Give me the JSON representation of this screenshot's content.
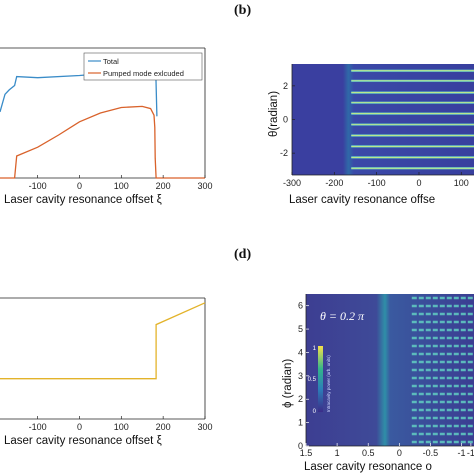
{
  "panels": {
    "a": {
      "xlabel": "Laser cavity resonance offset ξ",
      "xticks": [
        "-100",
        "0",
        "100",
        "200",
        "300"
      ],
      "legend": [
        "Total",
        "Pumped mode exlcuded"
      ]
    },
    "b": {
      "label": "(b)",
      "xlabel": "Laser cavity resonance offse",
      "ylabel": "θ(radian)",
      "xticks": [
        "-300",
        "-200",
        "-100",
        "0",
        "100"
      ],
      "yticks": [
        "2",
        "0",
        "-2"
      ]
    },
    "c": {
      "xlabel": "Laser cavity resonance  offset ξ",
      "xticks": [
        "-100",
        "0",
        "100",
        "200",
        "300"
      ]
    },
    "d": {
      "label": "(d)",
      "xlabel": "Laser cavity resonance o",
      "ylabel": "ϕ (radian)",
      "annotation": "θ = 0.2 π",
      "xticks": [
        "1.5",
        "1",
        "0.5",
        "0",
        "-0.5",
        "-1",
        "-1"
      ],
      "yticks": [
        "6",
        "5",
        "4",
        "3",
        "2",
        "1",
        "0"
      ],
      "colorbar_ticks": [
        "1",
        "0.5",
        "0"
      ],
      "colorbar_label": "Intracavity power (arb. units)"
    }
  },
  "chart_data": [
    {
      "type": "line",
      "panel": "a",
      "xlabel": "Laser cavity resonance offset ξ",
      "xlim": [
        -190,
        300
      ],
      "series": [
        {
          "name": "Total",
          "color": "#3a8cc8",
          "x": [
            -190,
            -178,
            -168,
            -155,
            -150,
            -100,
            0,
            100,
            170,
            180,
            182,
            185
          ],
          "y": [
            0.42,
            0.58,
            0.62,
            0.66,
            0.74,
            0.73,
            0.75,
            0.78,
            0.81,
            0.83,
            0.85,
            0.38
          ]
        },
        {
          "name": "Pumped mode exlcuded",
          "color": "#d9622b",
          "x": [
            -190,
            -165,
            -155,
            -150,
            -100,
            -50,
            0,
            50,
            100,
            150,
            170,
            178,
            180,
            181,
            183,
            190,
            300
          ],
          "y": [
            -0.18,
            -0.18,
            -0.18,
            0.02,
            0.1,
            0.21,
            0.33,
            0.41,
            0.46,
            0.47,
            0.45,
            0.39,
            0.28,
            0.0,
            -0.18,
            -0.18,
            -0.18
          ]
        }
      ]
    },
    {
      "type": "heatmap",
      "panel": "b",
      "xlabel": "Laser cavity resonance offse",
      "ylabel": "θ(radian)",
      "xlim": [
        -300,
        130
      ],
      "ylim": [
        -3.3,
        3.3
      ],
      "fringe_y": [
        2.9,
        2.3,
        1.6,
        1.0,
        0.35,
        -0.3,
        -0.95,
        -1.6,
        -2.25,
        -2.9
      ],
      "fringe_start_x": -160,
      "shading_boundary_x": -185
    },
    {
      "type": "line",
      "panel": "c",
      "xlabel": "Laser cavity resonance  offset ξ",
      "xlim": [
        -190,
        300
      ],
      "series": [
        {
          "color": "#e3b32a",
          "x": [
            -190,
            183,
            183,
            300
          ],
          "y": [
            0.5,
            0.5,
            1.17,
            1.44
          ]
        }
      ]
    },
    {
      "type": "heatmap",
      "panel": "d",
      "xlabel": "Laser cavity resonance o",
      "ylabel": "ϕ (radian)",
      "xlim": [
        1.5,
        -1.2
      ],
      "ylim": [
        0,
        6.5
      ],
      "annotation": "θ = 0.2 π",
      "fringe_count": 19,
      "fringe_start_x": -0.2,
      "shading_boundary_x": 0.1
    }
  ]
}
